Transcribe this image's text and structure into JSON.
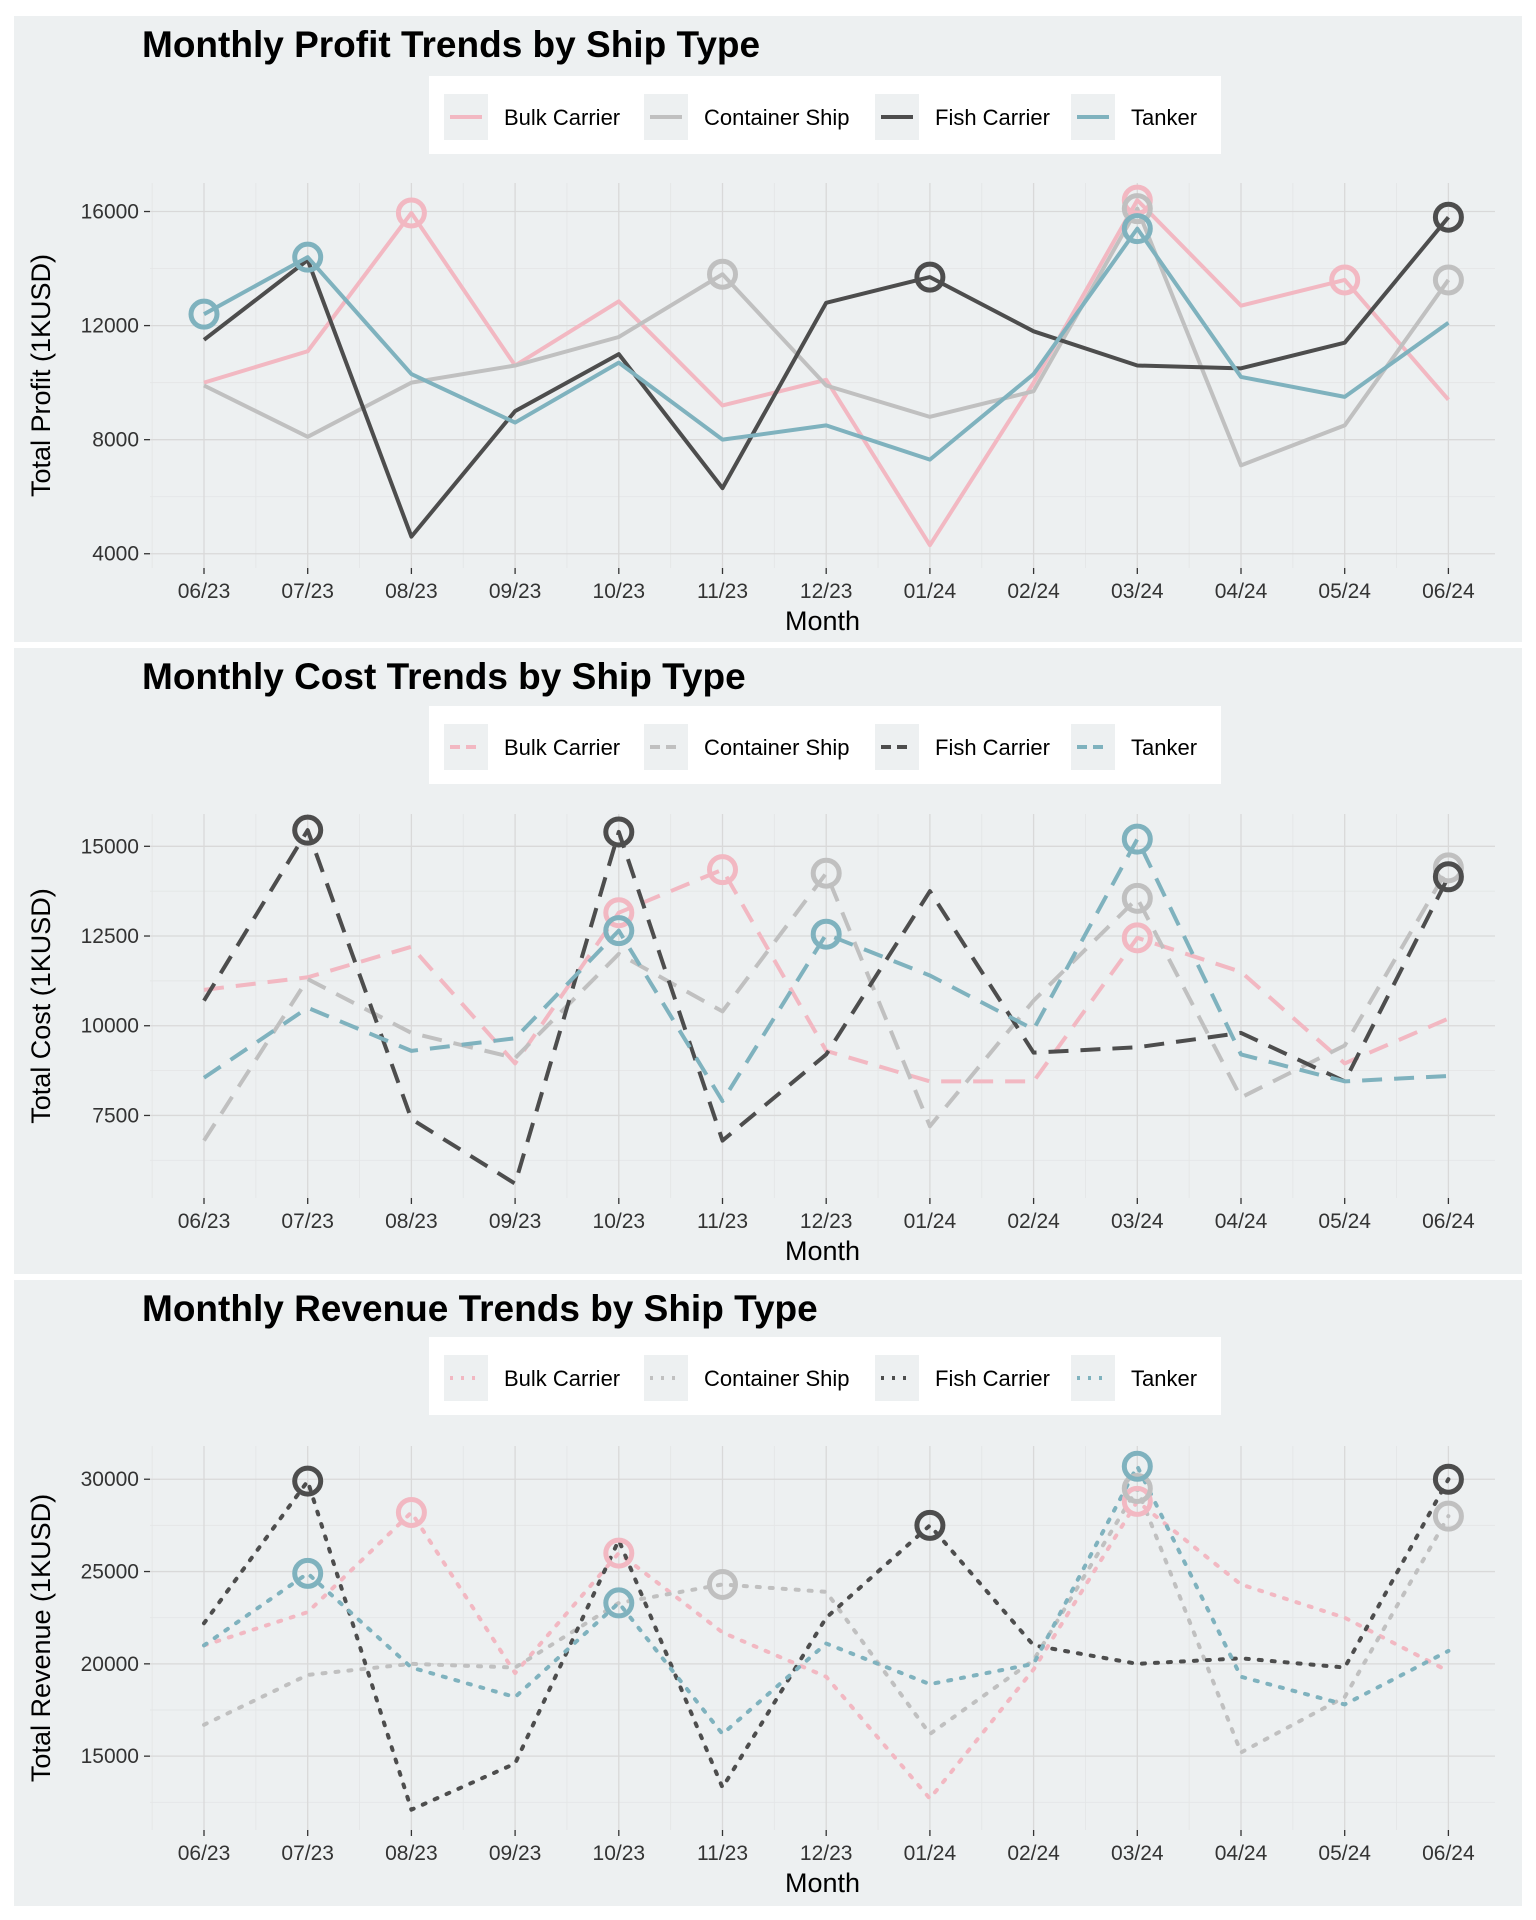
{
  "colors": {
    "Bulk Carrier": "#f2b8c2",
    "Container Ship": "#c0c0c0",
    "Fish Carrier": "#4d4d4d",
    "Tanker": "#7fb2be"
  },
  "chart_data": [
    {
      "type": "line",
      "title": "Monthly Profit Trends by Ship Type",
      "xlabel": "Month",
      "ylabel": "Total Profit (1KUSD)",
      "line_style": "solid",
      "categories": [
        "06/23",
        "07/23",
        "08/23",
        "09/23",
        "10/23",
        "11/23",
        "12/23",
        "01/24",
        "02/24",
        "03/24",
        "04/24",
        "05/24",
        "06/24"
      ],
      "ylim": [
        3500,
        17000
      ],
      "yticks": [
        4000,
        8000,
        12000,
        16000
      ],
      "yticks_minor": [
        6000,
        10000,
        14000
      ],
      "grid": true,
      "legend_position": "top",
      "series": [
        {
          "name": "Bulk Carrier",
          "values": [
            10000,
            11100,
            15950,
            10600,
            12850,
            9200,
            10100,
            4300,
            10000,
            16400,
            12700,
            13600,
            9400
          ],
          "highlights": [
            2,
            9,
            11
          ]
        },
        {
          "name": "Container Ship",
          "values": [
            9900,
            8100,
            10000,
            10600,
            11600,
            13800,
            9900,
            8800,
            9700,
            16100,
            7100,
            8500,
            13600
          ],
          "highlights": [
            5,
            9,
            12
          ]
        },
        {
          "name": "Fish Carrier",
          "values": [
            11500,
            14300,
            4600,
            9000,
            11000,
            6300,
            12800,
            13700,
            11800,
            10600,
            10500,
            11400,
            15800
          ],
          "highlights": [
            7,
            12
          ]
        },
        {
          "name": "Tanker",
          "values": [
            12400,
            14400,
            10300,
            8600,
            10700,
            8000,
            8500,
            7300,
            10300,
            15400,
            10200,
            9500,
            12100
          ],
          "highlights": [
            0,
            1,
            9
          ]
        }
      ]
    },
    {
      "type": "line",
      "title": "Monthly Cost Trends by Ship Type",
      "xlabel": "Month",
      "ylabel": "Total Cost (1KUSD)",
      "line_style": "dashed",
      "categories": [
        "06/23",
        "07/23",
        "08/23",
        "09/23",
        "10/23",
        "11/23",
        "12/23",
        "01/24",
        "02/24",
        "03/24",
        "04/24",
        "05/24",
        "06/24"
      ],
      "ylim": [
        5200,
        15900
      ],
      "yticks": [
        7500,
        10000,
        12500,
        15000
      ],
      "yticks_minor": [
        6250,
        8750,
        11250,
        13750
      ],
      "grid": true,
      "legend_position": "top",
      "series": [
        {
          "name": "Bulk Carrier",
          "values": [
            11000,
            11350,
            12200,
            8950,
            13150,
            14350,
            9300,
            8450,
            8450,
            12450,
            11500,
            8950,
            10200
          ],
          "highlights": [
            4,
            5,
            9
          ]
        },
        {
          "name": "Container Ship",
          "values": [
            6800,
            11300,
            9800,
            9100,
            12000,
            10400,
            14250,
            7200,
            10700,
            13550,
            8000,
            9450,
            14400
          ],
          "highlights": [
            6,
            9,
            12
          ]
        },
        {
          "name": "Fish Carrier",
          "values": [
            10700,
            15450,
            7400,
            5600,
            15400,
            6800,
            9200,
            13750,
            9250,
            9400,
            9800,
            8450,
            14150
          ],
          "highlights": [
            1,
            4,
            12
          ]
        },
        {
          "name": "Tanker",
          "values": [
            8550,
            10500,
            9300,
            9650,
            12650,
            7900,
            12550,
            11400,
            9900,
            15200,
            9200,
            8450,
            8600
          ],
          "highlights": [
            4,
            6,
            9
          ]
        }
      ]
    },
    {
      "type": "line",
      "title": "Monthly Revenue Trends by Ship Type",
      "xlabel": "Month",
      "ylabel": "Total Revenue (1KUSD)",
      "line_style": "dotted",
      "categories": [
        "06/23",
        "07/23",
        "08/23",
        "09/23",
        "10/23",
        "11/23",
        "12/23",
        "01/24",
        "02/24",
        "03/24",
        "04/24",
        "05/24",
        "06/24"
      ],
      "ylim": [
        11000,
        31800
      ],
      "yticks": [
        15000,
        20000,
        25000,
        30000
      ],
      "yticks_minor": [
        12500,
        17500,
        22500,
        27500
      ],
      "grid": true,
      "legend_position": "top",
      "series": [
        {
          "name": "Bulk Carrier",
          "values": [
            21000,
            22800,
            28200,
            19500,
            26000,
            21700,
            19300,
            12700,
            19700,
            28800,
            24300,
            22500,
            19600
          ],
          "highlights": [
            2,
            4,
            9
          ]
        },
        {
          "name": "Container Ship",
          "values": [
            16700,
            19400,
            20000,
            19800,
            23300,
            24300,
            23900,
            16200,
            20200,
            29500,
            15200,
            18200,
            28000
          ],
          "highlights": [
            5,
            9,
            12
          ]
        },
        {
          "name": "Fish Carrier",
          "values": [
            22200,
            29900,
            12100,
            14600,
            26700,
            13300,
            22500,
            27500,
            21000,
            20000,
            20300,
            19800,
            30000
          ],
          "highlights": [
            1,
            7,
            12
          ]
        },
        {
          "name": "Tanker",
          "values": [
            21000,
            24900,
            19800,
            18200,
            23300,
            16200,
            21100,
            18900,
            20000,
            30700,
            19300,
            17800,
            20700
          ],
          "highlights": [
            1,
            4,
            9
          ]
        }
      ]
    }
  ]
}
